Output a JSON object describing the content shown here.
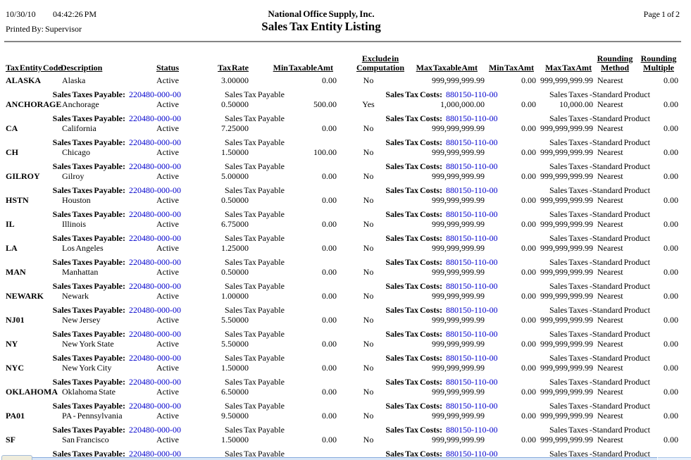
{
  "report": {
    "date": "10/30/10",
    "time": "04:42:26 PM",
    "printed_by": "Printed By: Supervisor",
    "company": "National Office Supply, Inc.",
    "title": "Sales Tax Entity Listing",
    "page": "Page 1 of 2"
  },
  "table": {
    "headers": {
      "code": "Tax Entity Code",
      "description": "Description",
      "status": "Status",
      "tax_rate": "Tax Rate",
      "min_taxable": "Min Taxable Amt",
      "exclude_line1": "Exclude in",
      "exclude_line2": "Computation",
      "max_taxable": "Max Taxable Amt",
      "min_tax": "Min Tax Amt",
      "max_tax": "Max Tax Amt",
      "rounding_method_line1": "Rounding",
      "rounding_method_line2": "Method",
      "rounding_multiple_line1": "Rounding",
      "rounding_multiple_line2": "Multiple"
    },
    "account_labels": {
      "payable": "Sales Taxes Payable:",
      "payable_account": "220480-000-00",
      "payable_name": "Sales Tax Payable",
      "costs": "Sales Tax Costs:",
      "costs_account": "880150-110-00",
      "costs_name": "Sales Taxes -Standard Product"
    },
    "entities": [
      {
        "code": "ALASKA",
        "description": "Alaska",
        "status": "Active",
        "tax_rate": "3.00000",
        "min_taxable": "0.00",
        "exclude": "No",
        "max_taxable": "999,999,999.99",
        "min_tax": "0.00",
        "max_tax": "999,999,999.99",
        "rounding_method": "Nearest",
        "rounding_multiple": "0.00"
      },
      {
        "code": "ANCHORAGE",
        "description": "Anchorage",
        "status": "Active",
        "tax_rate": "0.50000",
        "min_taxable": "500.00",
        "exclude": "Yes",
        "max_taxable": "1,000,000.00",
        "min_tax": "0.00",
        "max_tax": "10,000.00",
        "rounding_method": "Nearest",
        "rounding_multiple": "0.00"
      },
      {
        "code": "CA",
        "description": "California",
        "status": "Active",
        "tax_rate": "7.25000",
        "min_taxable": "0.00",
        "exclude": "No",
        "max_taxable": "999,999,999.99",
        "min_tax": "0.00",
        "max_tax": "999,999,999.99",
        "rounding_method": "Nearest",
        "rounding_multiple": "0.00"
      },
      {
        "code": "CH",
        "description": "Chicago",
        "status": "Active",
        "tax_rate": "1.50000",
        "min_taxable": "100.00",
        "exclude": "No",
        "max_taxable": "999,999,999.99",
        "min_tax": "0.00",
        "max_tax": "999,999,999.99",
        "rounding_method": "Nearest",
        "rounding_multiple": "0.00"
      },
      {
        "code": "GILROY",
        "description": "Gilroy",
        "status": "Active",
        "tax_rate": "5.00000",
        "min_taxable": "0.00",
        "exclude": "No",
        "max_taxable": "999,999,999.99",
        "min_tax": "0.00",
        "max_tax": "999,999,999.99",
        "rounding_method": "Nearest",
        "rounding_multiple": "0.00"
      },
      {
        "code": "HSTN",
        "description": "Houston",
        "status": "Active",
        "tax_rate": "0.50000",
        "min_taxable": "0.00",
        "exclude": "No",
        "max_taxable": "999,999,999.99",
        "min_tax": "0.00",
        "max_tax": "999,999,999.99",
        "rounding_method": "Nearest",
        "rounding_multiple": "0.00"
      },
      {
        "code": "IL",
        "description": "Illinois",
        "status": "Active",
        "tax_rate": "6.75000",
        "min_taxable": "0.00",
        "exclude": "No",
        "max_taxable": "999,999,999.99",
        "min_tax": "0.00",
        "max_tax": "999,999,999.99",
        "rounding_method": "Nearest",
        "rounding_multiple": "0.00"
      },
      {
        "code": "LA",
        "description": "Los Angeles",
        "status": "Active",
        "tax_rate": "1.25000",
        "min_taxable": "0.00",
        "exclude": "No",
        "max_taxable": "999,999,999.99",
        "min_tax": "0.00",
        "max_tax": "999,999,999.99",
        "rounding_method": "Nearest",
        "rounding_multiple": "0.00"
      },
      {
        "code": "MAN",
        "description": "Manhattan",
        "status": "Active",
        "tax_rate": "0.50000",
        "min_taxable": "0.00",
        "exclude": "No",
        "max_taxable": "999,999,999.99",
        "min_tax": "0.00",
        "max_tax": "999,999,999.99",
        "rounding_method": "Nearest",
        "rounding_multiple": "0.00"
      },
      {
        "code": "NEWARK",
        "description": "Newark",
        "status": "Active",
        "tax_rate": "1.00000",
        "min_taxable": "0.00",
        "exclude": "No",
        "max_taxable": "999,999,999.99",
        "min_tax": "0.00",
        "max_tax": "999,999,999.99",
        "rounding_method": "Nearest",
        "rounding_multiple": "0.00"
      },
      {
        "code": "NJ01",
        "description": "New Jersey",
        "status": "Active",
        "tax_rate": "5.50000",
        "min_taxable": "0.00",
        "exclude": "No",
        "max_taxable": "999,999,999.99",
        "min_tax": "0.00",
        "max_tax": "999,999,999.99",
        "rounding_method": "Nearest",
        "rounding_multiple": "0.00"
      },
      {
        "code": "NY",
        "description": "New York State",
        "status": "Active",
        "tax_rate": "5.50000",
        "min_taxable": "0.00",
        "exclude": "No",
        "max_taxable": "999,999,999.99",
        "min_tax": "0.00",
        "max_tax": "999,999,999.99",
        "rounding_method": "Nearest",
        "rounding_multiple": "0.00"
      },
      {
        "code": "NYC",
        "description": "New York City",
        "status": "Active",
        "tax_rate": "1.50000",
        "min_taxable": "0.00",
        "exclude": "No",
        "max_taxable": "999,999,999.99",
        "min_tax": "0.00",
        "max_tax": "999,999,999.99",
        "rounding_method": "Nearest",
        "rounding_multiple": "0.00"
      },
      {
        "code": "OKLAHOMA",
        "description": "Oklahoma State",
        "status": "Active",
        "tax_rate": "6.50000",
        "min_taxable": "0.00",
        "exclude": "No",
        "max_taxable": "999,999,999.99",
        "min_tax": "0.00",
        "max_tax": "999,999,999.99",
        "rounding_method": "Nearest",
        "rounding_multiple": "0.00"
      },
      {
        "code": "PA01",
        "description": "PA - Pennsylvania",
        "status": "Active",
        "tax_rate": "9.50000",
        "min_taxable": "0.00",
        "exclude": "No",
        "max_taxable": "999,999,999.99",
        "min_tax": "0.00",
        "max_tax": "999,999,999.99",
        "rounding_method": "Nearest",
        "rounding_multiple": "0.00"
      },
      {
        "code": "SF",
        "description": "San Francisco",
        "status": "Active",
        "tax_rate": "1.50000",
        "min_taxable": "0.00",
        "exclude": "No",
        "max_taxable": "999,999,999.99",
        "min_tax": "0.00",
        "max_tax": "999,999,999.99",
        "rounding_method": "Nearest",
        "rounding_multiple": "0.00"
      }
    ]
  },
  "colors": {
    "link_blue": "#0000CD",
    "header_rule_gray": "#858585",
    "window_edge_blue": "#88abdd"
  }
}
